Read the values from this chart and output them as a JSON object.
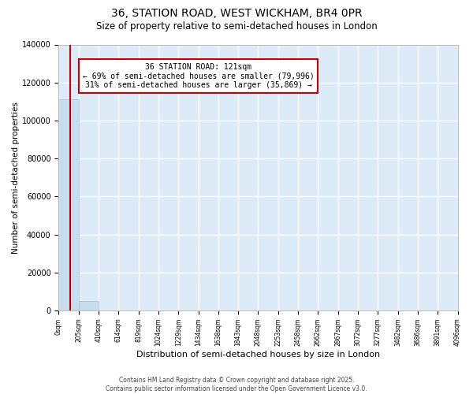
{
  "title": "36, STATION ROAD, WEST WICKHAM, BR4 0PR",
  "subtitle": "Size of property relative to semi-detached houses in London",
  "xlabel": "Distribution of semi-detached houses by size in London",
  "ylabel": "Number of semi-detached properties",
  "property_size": 121,
  "pct_smaller": 69,
  "pct_larger": 31,
  "n_smaller": 79996,
  "n_larger": 35869,
  "ylim": [
    0,
    140000
  ],
  "bar_color": "#c8dcf0",
  "bar_edge_color": "#a8c4e0",
  "property_line_color": "#cc0000",
  "annotation_box_color": "#cc0000",
  "plot_bg_color": "#ddeaf8",
  "fig_bg_color": "#ffffff",
  "grid_color": "#ffffff",
  "footer_text": "Contains HM Land Registry data © Crown copyright and database right 2025.\nContains public sector information licensed under the Open Government Licence v3.0.",
  "bin_edges": [
    0,
    205,
    410,
    614,
    819,
    1024,
    1229,
    1434,
    1638,
    1843,
    2048,
    2253,
    2458,
    2662,
    2867,
    3072,
    3277,
    3482,
    3686,
    3891,
    4096
  ],
  "bin_labels": [
    "0sqm",
    "205sqm",
    "410sqm",
    "614sqm",
    "819sqm",
    "1024sqm",
    "1229sqm",
    "1434sqm",
    "1638sqm",
    "1843sqm",
    "2048sqm",
    "2253sqm",
    "2458sqm",
    "2662sqm",
    "2867sqm",
    "3072sqm",
    "3277sqm",
    "3482sqm",
    "3686sqm",
    "3891sqm",
    "4096sqm"
  ],
  "bar_heights": [
    111000,
    5000,
    0,
    0,
    0,
    0,
    0,
    0,
    0,
    0,
    0,
    0,
    0,
    0,
    0,
    0,
    0,
    0,
    0,
    0
  ]
}
